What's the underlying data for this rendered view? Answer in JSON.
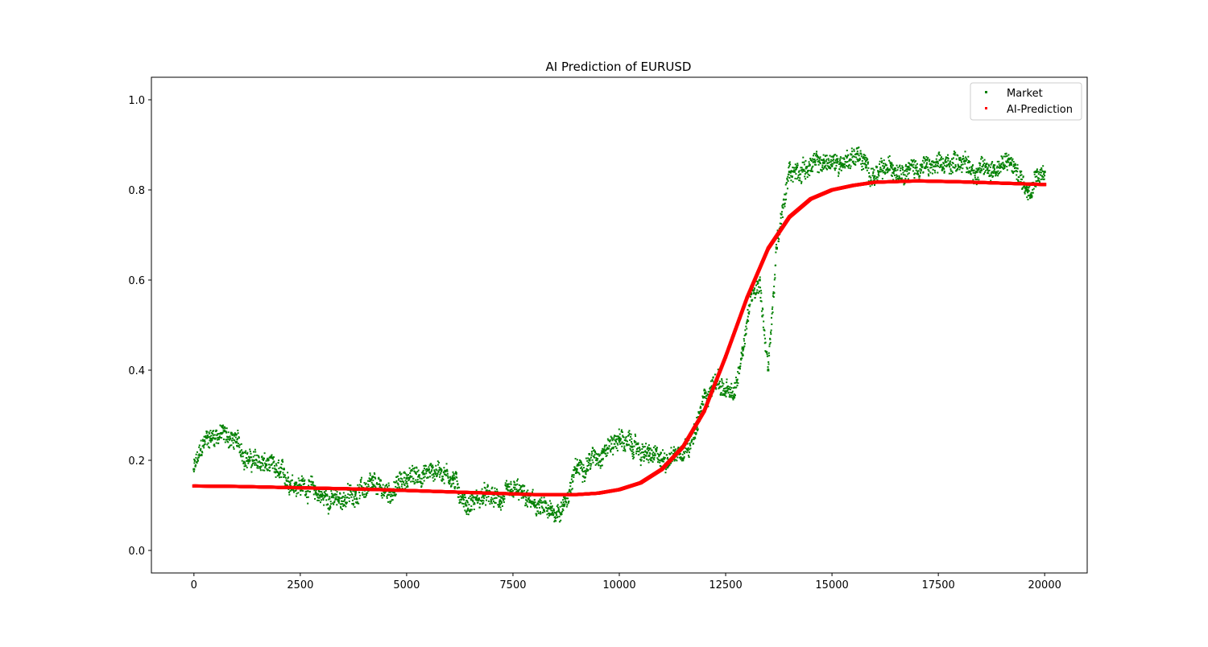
{
  "chart_data": {
    "type": "scatter",
    "title": "AI Prediction of EURUSD",
    "xlabel": "",
    "ylabel": "",
    "xlim": [
      -1000,
      21000
    ],
    "ylim": [
      -0.05,
      1.05
    ],
    "x_ticks": [
      0,
      2500,
      5000,
      7500,
      10000,
      12500,
      15000,
      17500,
      20000
    ],
    "y_ticks": [
      0.0,
      0.2,
      0.4,
      0.6,
      0.8,
      1.0
    ],
    "grid": false,
    "legend": "top-right",
    "series": [
      {
        "name": "Market",
        "color": "#008000",
        "x": [
          0,
          300,
          650,
          1000,
          1300,
          1700,
          2000,
          2400,
          2700,
          3000,
          3400,
          3800,
          4200,
          4600,
          5000,
          5400,
          5800,
          6100,
          6400,
          6800,
          7200,
          7600,
          8000,
          8400,
          8700,
          9000,
          9300,
          9600,
          10000,
          10300,
          10700,
          11000,
          11400,
          11800,
          12000,
          12300,
          12500,
          12700,
          12900,
          13100,
          13300,
          13500,
          13700,
          14000,
          14400,
          14800,
          15200,
          15600,
          15800,
          16000,
          16400,
          16800,
          17200,
          17600,
          18000,
          18400,
          18800,
          19200,
          19600,
          19800,
          20000
        ],
        "y": [
          0.18,
          0.25,
          0.26,
          0.24,
          0.2,
          0.19,
          0.17,
          0.15,
          0.14,
          0.12,
          0.11,
          0.13,
          0.14,
          0.13,
          0.16,
          0.17,
          0.18,
          0.16,
          0.1,
          0.12,
          0.11,
          0.13,
          0.1,
          0.08,
          0.1,
          0.18,
          0.2,
          0.22,
          0.25,
          0.23,
          0.21,
          0.2,
          0.22,
          0.26,
          0.34,
          0.38,
          0.35,
          0.34,
          0.45,
          0.57,
          0.6,
          0.4,
          0.67,
          0.84,
          0.85,
          0.86,
          0.86,
          0.88,
          0.85,
          0.83,
          0.85,
          0.85,
          0.85,
          0.85,
          0.87,
          0.84,
          0.85,
          0.86,
          0.8,
          0.84,
          0.84
        ]
      },
      {
        "name": "AI-Prediction",
        "color": "#ff0000",
        "x": [
          0,
          1000,
          2000,
          3000,
          4000,
          5000,
          6000,
          7000,
          8000,
          9000,
          9500,
          10000,
          10500,
          11000,
          11500,
          12000,
          12500,
          13000,
          13500,
          14000,
          14500,
          15000,
          15500,
          16000,
          17000,
          18000,
          19000,
          20000
        ],
        "y": [
          0.143,
          0.142,
          0.14,
          0.138,
          0.136,
          0.133,
          0.13,
          0.127,
          0.124,
          0.124,
          0.127,
          0.135,
          0.15,
          0.18,
          0.23,
          0.31,
          0.43,
          0.56,
          0.67,
          0.74,
          0.78,
          0.8,
          0.81,
          0.817,
          0.82,
          0.818,
          0.815,
          0.812
        ]
      }
    ]
  }
}
